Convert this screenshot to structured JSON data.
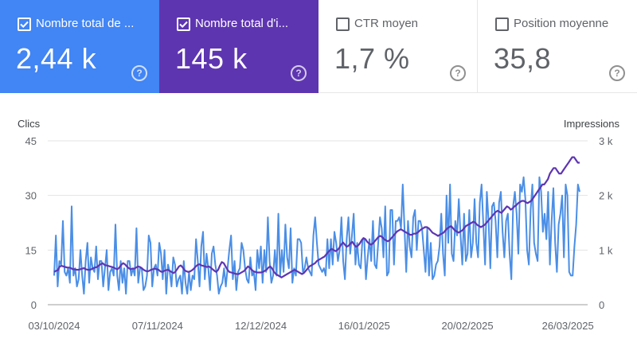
{
  "cards": [
    {
      "label": "Nombre total de ...",
      "value": "2,44 k",
      "checked": true,
      "color": "#4285f4"
    },
    {
      "label": "Nombre total d'i...",
      "value": "145 k",
      "checked": true,
      "color": "#5e35b1"
    },
    {
      "label": "CTR moyen",
      "value": "1,7 %",
      "checked": false
    },
    {
      "label": "Position moyenne",
      "value": "35,8",
      "checked": false
    }
  ],
  "help_symbol": "?",
  "chart_data": {
    "type": "line",
    "ylabel": "Clics",
    "y2label": "Impressions",
    "ylim": [
      0,
      45
    ],
    "y2lim": [
      0,
      3000
    ],
    "yticks": [
      "0",
      "15",
      "30",
      "45"
    ],
    "y2ticks": [
      "0",
      "1 k",
      "2 k",
      "3 k"
    ],
    "x_start": "03/10/2024",
    "x_end": "30/03/2025",
    "xticks": [
      "03/10/2024",
      "07/11/2024",
      "12/12/2024",
      "16/01/2025",
      "20/02/2025",
      "26/03/2025"
    ],
    "grid": true,
    "series": [
      {
        "axis": "left",
        "color": "#4a8ee6",
        "values": [
          8,
          19,
          5,
          12,
          11,
          23,
          9,
          8,
          10,
          6,
          27,
          8,
          10,
          5,
          7,
          15,
          8,
          3,
          12,
          17,
          6,
          13,
          10,
          9,
          16,
          7,
          12,
          12,
          5,
          10,
          15,
          4,
          9,
          10,
          8,
          22,
          8,
          4,
          12,
          6,
          10,
          3,
          12,
          12,
          8,
          10,
          8,
          21,
          6,
          10,
          10,
          4,
          5,
          8,
          19,
          17,
          5,
          10,
          11,
          8,
          17,
          14,
          7,
          15,
          3,
          11,
          9,
          5,
          13,
          11,
          5,
          7,
          8,
          3,
          12,
          6,
          3,
          9,
          4,
          8,
          7,
          18,
          12,
          5,
          16,
          20,
          7,
          14,
          10,
          4,
          14,
          16,
          11,
          8,
          3,
          5,
          6,
          10,
          5,
          10,
          15,
          19,
          7,
          12,
          4,
          9,
          10,
          17,
          15,
          10,
          7,
          6,
          13,
          8,
          9,
          4,
          15,
          10,
          16,
          6,
          15,
          9,
          24,
          12,
          6,
          8,
          15,
          8,
          25,
          8,
          15,
          9,
          22,
          13,
          10,
          21,
          6,
          10,
          8,
          18,
          18,
          17,
          9,
          10,
          13,
          10,
          9,
          8,
          19,
          24,
          17,
          11,
          10,
          9,
          10,
          8,
          18,
          10,
          18,
          11,
          20,
          17,
          12,
          15,
          24,
          12,
          7,
          18,
          24,
          14,
          19,
          25,
          11,
          17,
          11,
          10,
          18,
          18,
          7,
          13,
          18,
          12,
          23,
          11,
          10,
          17,
          24,
          21,
          13,
          27,
          8,
          9,
          26,
          26,
          11,
          23,
          23,
          24,
          21,
          33,
          21,
          9,
          23,
          16,
          13,
          24,
          26,
          15,
          23,
          23,
          21,
          15,
          9,
          21,
          8,
          17,
          7,
          8,
          11,
          12,
          16,
          25,
          14,
          8,
          30,
          17,
          33,
          14,
          12,
          23,
          19,
          29,
          19,
          11,
          25,
          12,
          14,
          26,
          13,
          17,
          29,
          17,
          13,
          28,
          33,
          22,
          11,
          31,
          23,
          10,
          27,
          28,
          23,
          13,
          28,
          31,
          20,
          13,
          23,
          25,
          14,
          7,
          27,
          31,
          25,
          14,
          33,
          31,
          35,
          29,
          15,
          11,
          26,
          33,
          17,
          14,
          12,
          35,
          31,
          20,
          25,
          18,
          31,
          11,
          23,
          32,
          17,
          9,
          22,
          25,
          30,
          13,
          33,
          30,
          9,
          8,
          8,
          16,
          22,
          33,
          31
        ]
      },
      {
        "axis": "right",
        "color": "#5e35b1",
        "values": [
          600,
          620,
          630,
          700,
          710,
          700,
          690,
          680,
          680,
          670,
          650,
          650,
          640,
          640,
          650,
          660,
          670,
          650,
          640,
          640,
          650,
          670,
          680,
          690,
          720,
          740,
          760,
          730,
          720,
          710,
          700,
          690,
          680,
          660,
          650,
          680,
          730,
          760,
          740,
          700,
          670,
          650,
          660,
          660,
          680,
          700,
          690,
          670,
          640,
          620,
          610,
          620,
          640,
          650,
          660,
          650,
          640,
          610,
          600,
          620,
          630,
          640,
          620,
          600,
          580,
          600,
          650,
          700,
          720,
          680,
          630,
          610,
          600,
          610,
          630,
          660,
          700,
          730,
          740,
          720,
          710,
          700,
          690,
          700,
          680,
          650,
          620,
          600,
          640,
          720,
          780,
          760,
          700,
          640,
          600,
          590,
          580,
          570,
          560,
          560,
          580,
          600,
          620,
          660,
          700,
          680,
          640,
          610,
          600,
          590,
          590,
          590,
          600,
          620,
          640,
          680,
          700,
          660,
          600,
          560,
          540,
          520,
          500,
          520,
          540,
          560,
          580,
          600,
          620,
          640,
          620,
          600,
          580,
          560,
          580,
          620,
          660,
          700,
          720,
          740,
          760,
          800,
          820,
          840,
          860,
          880,
          920,
          960,
          1000,
          1020,
          1000,
          980,
          1000,
          1040,
          1100,
          1140,
          1100,
          1060,
          1080,
          1120,
          1150,
          1100,
          1060,
          1080,
          1120,
          1180,
          1220,
          1200,
          1150,
          1120,
          1100,
          1120,
          1160,
          1200,
          1240,
          1260,
          1240,
          1200,
          1180,
          1160,
          1180,
          1220,
          1260,
          1300,
          1340,
          1360,
          1380,
          1360,
          1340,
          1320,
          1300,
          1280,
          1280,
          1300,
          1300,
          1320,
          1350,
          1380,
          1400,
          1420,
          1420,
          1400,
          1360,
          1320,
          1300,
          1280,
          1260,
          1280,
          1300,
          1320,
          1360,
          1400,
          1420,
          1440,
          1400,
          1360,
          1340,
          1320,
          1340,
          1360,
          1400,
          1440,
          1460,
          1480,
          1500,
          1520,
          1500,
          1460,
          1440,
          1420,
          1440,
          1460,
          1500,
          1540,
          1580,
          1620,
          1660,
          1700,
          1720,
          1700,
          1680,
          1720,
          1760,
          1800,
          1780,
          1740,
          1760,
          1800,
          1820,
          1860,
          1880,
          1900,
          1900,
          1880,
          1860,
          1880,
          1900,
          1950,
          2000,
          2050,
          2100,
          2150,
          2200,
          2200,
          2250,
          2300,
          2400,
          2450,
          2500,
          2500,
          2450,
          2400,
          2400,
          2450,
          2500,
          2550,
          2600,
          2650,
          2700,
          2700,
          2650,
          2600,
          2600
        ]
      }
    ]
  }
}
